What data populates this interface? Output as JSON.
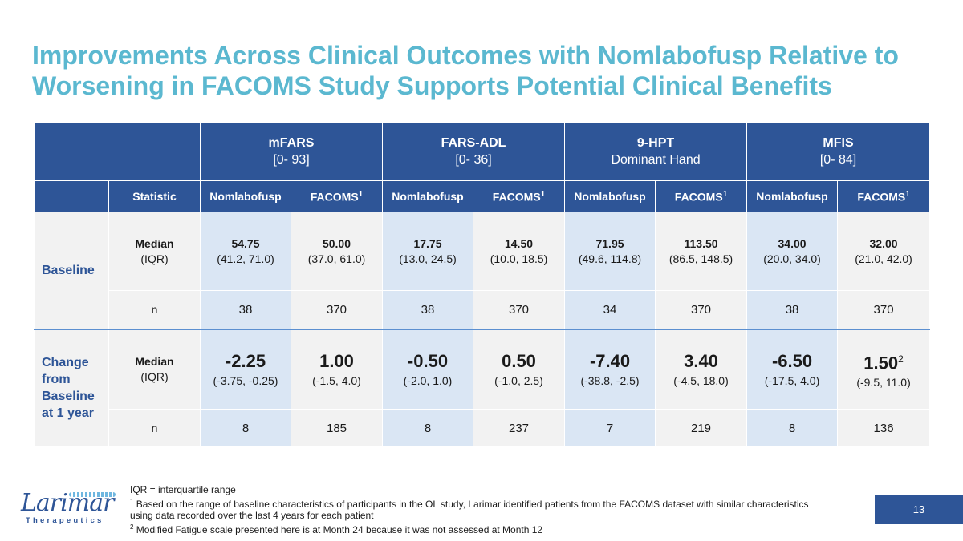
{
  "title": "Improvements Across Clinical Outcomes with Nomlabofusp Relative to Worsening in FACOMS Study Supports Potential Clinical Benefits",
  "header": {
    "groups": [
      {
        "name": "mFARS",
        "range": "[0- 93]"
      },
      {
        "name": "FARS-ADL",
        "range": "[0- 36]"
      },
      {
        "name": "9-HPT",
        "range": "Dominant Hand"
      },
      {
        "name": "MFIS",
        "range": "[0- 84]"
      }
    ],
    "statistic_label": "Statistic",
    "col_nom": "Nomlabofusp",
    "col_fac": "FACOMS",
    "col_fac_sup": "1"
  },
  "baseline": {
    "label": "Baseline",
    "stat_median": "Median",
    "stat_iqr": "(IQR)",
    "cells": [
      {
        "v": "54.75",
        "r": "(41.2, 71.0)"
      },
      {
        "v": "50.00",
        "r": "(37.0, 61.0)"
      },
      {
        "v": "17.75",
        "r": "(13.0, 24.5)"
      },
      {
        "v": "14.50",
        "r": "(10.0, 18.5)"
      },
      {
        "v": "71.95",
        "r": "(49.6, 114.8)"
      },
      {
        "v": "113.50",
        "r": "(86.5, 148.5)"
      },
      {
        "v": "34.00",
        "r": "(20.0, 34.0)"
      },
      {
        "v": "32.00",
        "r": "(21.0, 42.0)"
      }
    ],
    "n_label": "n",
    "n": [
      "38",
      "370",
      "38",
      "370",
      "34",
      "370",
      "38",
      "370"
    ]
  },
  "change": {
    "label_lines": [
      "Change",
      "from",
      "Baseline",
      "at 1 year"
    ],
    "stat_median": "Median",
    "stat_iqr": "(IQR)",
    "cells": [
      {
        "v": "-2.25",
        "r": "(-3.75, -0.25)"
      },
      {
        "v": "1.00",
        "r": "(-1.5, 4.0)"
      },
      {
        "v": "-0.50",
        "r": "(-2.0, 1.0)"
      },
      {
        "v": "0.50",
        "r": "(-1.0, 2.5)"
      },
      {
        "v": "-7.40",
        "r": "(-38.8, -2.5)"
      },
      {
        "v": "3.40",
        "r": "(-4.5, 18.0)"
      },
      {
        "v": "-6.50",
        "r": "(-17.5, 4.0)"
      },
      {
        "v": "1.50",
        "r": "(-9.5, 11.0)",
        "sup": "2"
      }
    ],
    "n_label": "n",
    "n": [
      "8",
      "185",
      "8",
      "237",
      "7",
      "219",
      "8",
      "136"
    ]
  },
  "footnotes": {
    "iqr": "IQR = interquartile range",
    "f1_num": "1",
    "f1": " Based on the range of baseline characteristics of participants in the OL study, Larimar identified patients from the FACOMS dataset with similar characteristics using data recorded over the last 4 years for each patient",
    "f2_num": "2",
    "f2": "  Modified Fatigue scale presented here is at Month 24 because it was not assessed at Month 12"
  },
  "logo": {
    "word": "Larimar",
    "sub": "Therapeutics"
  },
  "page_number": "13",
  "colors": {
    "title": "#5bb8d0",
    "header_bg": "#2e5597",
    "nom_bg": "#dae6f4",
    "fac_bg": "#f2f2f2"
  }
}
